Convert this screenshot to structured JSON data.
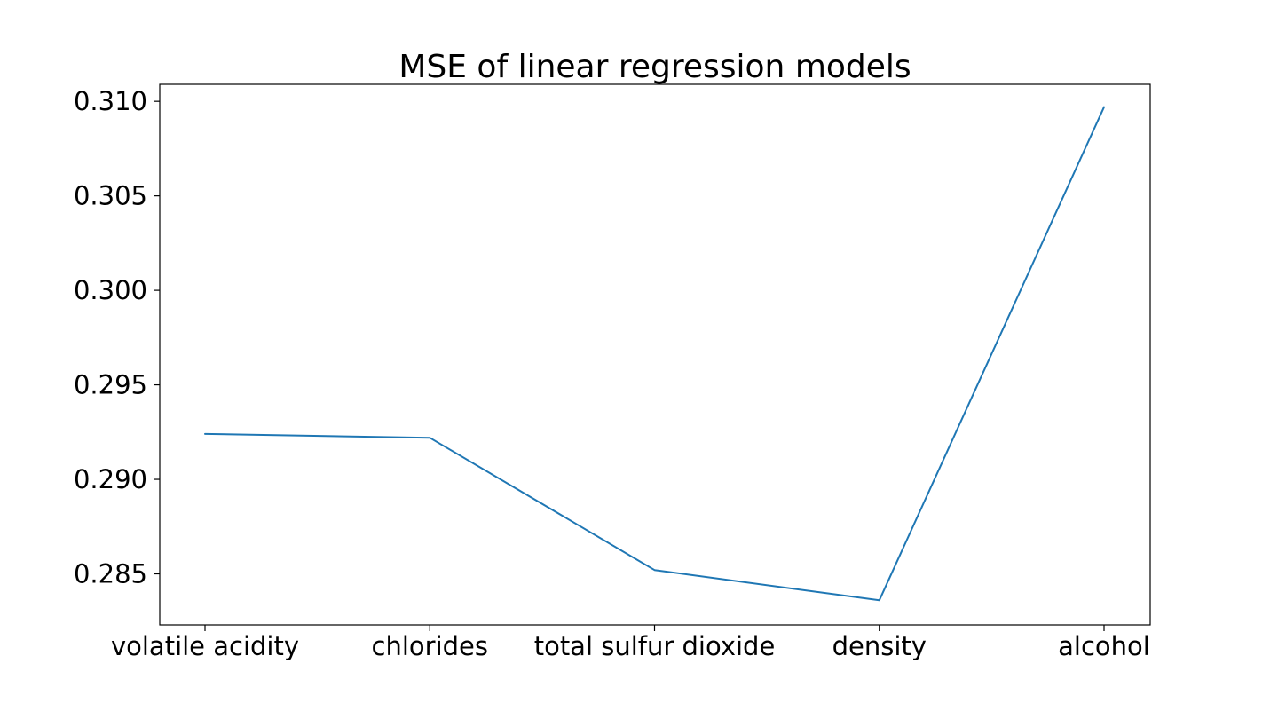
{
  "chart_data": {
    "type": "line",
    "title": "MSE of linear regression models",
    "xlabel": "",
    "ylabel": "",
    "categories": [
      "volatile acidity",
      "chlorides",
      "total sulfur dioxide",
      "density",
      "alcohol"
    ],
    "series": [
      {
        "values": [
          0.2924,
          0.2922,
          0.2852,
          0.2836,
          0.3097
        ],
        "color": "#1f77b4"
      }
    ],
    "ylim": [
      0.2823,
      0.3109
    ],
    "yticks": [
      0.285,
      0.29,
      0.295,
      0.3,
      0.305,
      0.31
    ],
    "ytick_labels": [
      "0.285",
      "0.290",
      "0.295",
      "0.300",
      "0.305",
      "0.310"
    ],
    "grid": false,
    "legend": false
  }
}
